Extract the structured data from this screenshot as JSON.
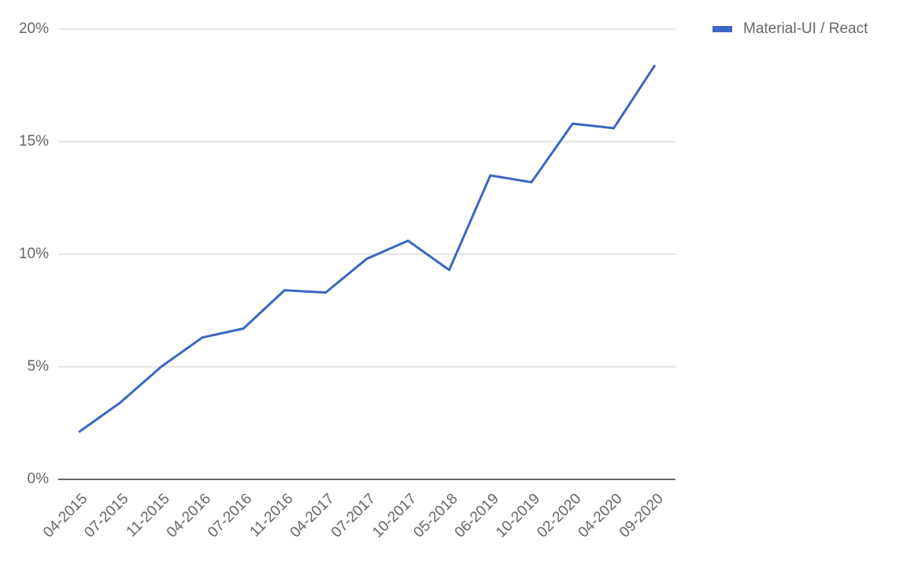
{
  "chart_data": {
    "type": "line",
    "categories": [
      "04-2015",
      "07-2015",
      "11-2015",
      "04-2016",
      "07-2016",
      "11-2016",
      "04-2017",
      "07-2017",
      "10-2017",
      "05-2018",
      "06-2019",
      "10-2019",
      "02-2020",
      "04-2020",
      "09-2020"
    ],
    "series": [
      {
        "name": "Material-UI / React",
        "color": "#3c66c3",
        "values": [
          2.1,
          3.4,
          5.0,
          6.3,
          6.7,
          8.4,
          8.3,
          9.8,
          10.6,
          9.3,
          13.5,
          13.2,
          15.8,
          15.6,
          18.4
        ]
      }
    ],
    "ylim": [
      0,
      20
    ],
    "yticks": [
      {
        "value": 0,
        "label": "0%"
      },
      {
        "value": 5,
        "label": "5%"
      },
      {
        "value": 10,
        "label": "10%"
      },
      {
        "value": 15,
        "label": "15%"
      },
      {
        "value": 20,
        "label": "20%"
      }
    ],
    "grid": true,
    "legend": "right"
  }
}
